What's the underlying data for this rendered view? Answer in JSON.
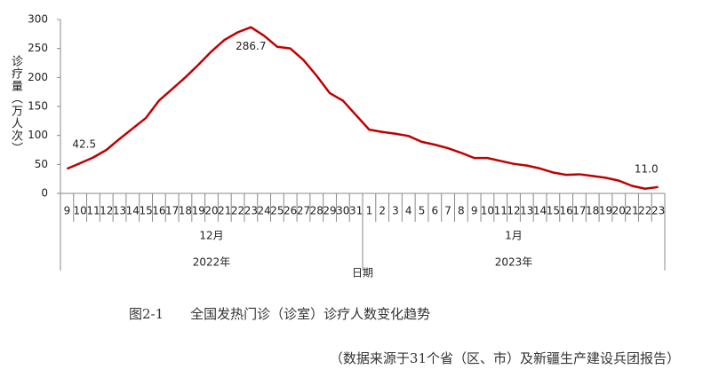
{
  "chart_data": {
    "type": "line",
    "caption": "图2-1　　全国发热门诊（诊室）诊疗人数变化趋势",
    "source": "（数据来源于31个省（区、市）及新疆生产建设兵团报告）",
    "y_label": "诊疗量（万人次）",
    "x_label": "日期",
    "categories": [
      "9",
      "10",
      "11",
      "12",
      "13",
      "14",
      "15",
      "16",
      "17",
      "18",
      "19",
      "20",
      "21",
      "22",
      "23",
      "24",
      "25",
      "26",
      "27",
      "28",
      "29",
      "30",
      "31",
      "1",
      "2",
      "3",
      "4",
      "5",
      "6",
      "7",
      "8",
      "9",
      "10",
      "11",
      "12",
      "13",
      "14",
      "15",
      "16",
      "17",
      "18",
      "19",
      "20",
      "21",
      "22",
      "23"
    ],
    "groups": [
      {
        "name": "12月",
        "year": "2022年"
      },
      {
        "name": "1月",
        "year": "2023年"
      }
    ],
    "series": [
      {
        "name": "诊疗量",
        "color": "#c00000",
        "values": [
          42.5,
          52,
          62,
          75,
          94,
          112,
          130,
          160,
          180,
          200,
          222,
          245,
          265,
          278,
          286.7,
          272,
          253,
          250,
          230,
          203,
          173,
          160,
          135,
          110,
          106,
          103,
          99,
          89,
          84,
          78,
          70,
          61,
          61,
          56,
          51,
          48,
          43,
          36,
          32,
          33,
          30,
          27,
          22,
          13,
          8,
          11.0
        ],
        "value_labels": [
          "42.5",
          null,
          null,
          null,
          null,
          null,
          null,
          null,
          null,
          null,
          null,
          null,
          null,
          null,
          "286.7",
          null,
          null,
          null,
          null,
          null,
          null,
          null,
          null,
          null,
          null,
          null,
          null,
          null,
          null,
          null,
          null,
          null,
          null,
          null,
          null,
          null,
          null,
          null,
          null,
          null,
          null,
          null,
          null,
          null,
          null,
          "11.0"
        ]
      }
    ],
    "ylim": [
      0,
      300
    ],
    "yticks": [
      0,
      50,
      100,
      150,
      200,
      250,
      300
    ]
  }
}
